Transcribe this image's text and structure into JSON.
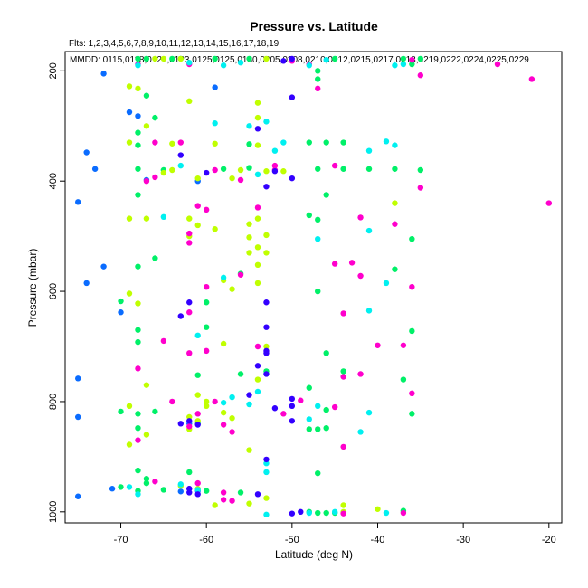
{
  "chart_data": {
    "type": "scatter",
    "title": "Pressure vs. Latitude",
    "subtitle_flts": "Flts: 1,2,3,4,5,6,7,8,9,10,11,12,13,14,15,16,17,18,19",
    "subtitle_mmdd": "MMDD: 0115,0118,0121,0123,0125,0125,0130,0205,0208,0210,0212,0215,0217,0218,0219,0222,0224,0225,0229",
    "xlabel": "Latitude (deg N)",
    "ylabel": "Pressure (mbar)",
    "xlim": [
      -76.5,
      -18.5
    ],
    "ylim": [
      1020,
      165
    ],
    "y_reversed": true,
    "grid": false,
    "xticks": [
      -70,
      -60,
      -50,
      -40,
      -30,
      -20
    ],
    "yticks": [
      200,
      400,
      600,
      800,
      1000
    ],
    "colors": [
      "#0a6cff",
      "#00f068",
      "#c0ff00",
      "#ff00cc",
      "#00f0f0",
      "#3300ff"
    ],
    "points": [
      [
        -72,
        205,
        0
      ],
      [
        -74,
        348,
        0
      ],
      [
        -73,
        378,
        0
      ],
      [
        -75,
        438,
        0
      ],
      [
        -72,
        555,
        0
      ],
      [
        -74,
        585,
        0
      ],
      [
        -75,
        758,
        0
      ],
      [
        -75,
        828,
        0
      ],
      [
        -71,
        958,
        0
      ],
      [
        -75,
        972,
        0
      ],
      [
        -69,
        275,
        0
      ],
      [
        -68,
        282,
        0
      ],
      [
        -67,
        398,
        0
      ],
      [
        -70,
        638,
        0
      ],
      [
        -59,
        230,
        0
      ],
      [
        -61,
        400,
        0
      ],
      [
        -62,
        840,
        0
      ],
      [
        -61,
        962,
        0
      ],
      [
        -63,
        963,
        0
      ],
      [
        -68,
        178,
        1
      ],
      [
        -67,
        178,
        1
      ],
      [
        -64,
        178,
        1
      ],
      [
        -63,
        178,
        1
      ],
      [
        -59,
        178,
        1
      ],
      [
        -55,
        178,
        1
      ],
      [
        -45,
        178,
        1
      ],
      [
        -37,
        178,
        1
      ],
      [
        -35,
        178,
        1
      ],
      [
        -36,
        188,
        1
      ],
      [
        -47,
        200,
        1
      ],
      [
        -47,
        215,
        1
      ],
      [
        -67,
        245,
        1
      ],
      [
        -66,
        285,
        1
      ],
      [
        -68,
        312,
        1
      ],
      [
        -68,
        335,
        1
      ],
      [
        -55,
        333,
        1
      ],
      [
        -48,
        330,
        1
      ],
      [
        -46,
        330,
        1
      ],
      [
        -44,
        330,
        1
      ],
      [
        -68,
        378,
        1
      ],
      [
        -65,
        380,
        1
      ],
      [
        -58,
        378,
        1
      ],
      [
        -55,
        376,
        1
      ],
      [
        -47,
        378,
        1
      ],
      [
        -44,
        378,
        1
      ],
      [
        -41,
        378,
        1
      ],
      [
        -38,
        378,
        1
      ],
      [
        -35,
        380,
        1
      ],
      [
        -68,
        425,
        1
      ],
      [
        -46,
        425,
        1
      ],
      [
        -48,
        462,
        1
      ],
      [
        -47,
        470,
        1
      ],
      [
        -36,
        505,
        1
      ],
      [
        -68,
        555,
        1
      ],
      [
        -66,
        540,
        1
      ],
      [
        -56,
        568,
        1
      ],
      [
        -38,
        560,
        1
      ],
      [
        -47,
        600,
        1
      ],
      [
        -70,
        618,
        1
      ],
      [
        -36,
        672,
        1
      ],
      [
        -68,
        670,
        1
      ],
      [
        -60,
        620,
        1
      ],
      [
        -68,
        692,
        1
      ],
      [
        -60,
        665,
        1
      ],
      [
        -46,
        712,
        1
      ],
      [
        -56,
        750,
        1
      ],
      [
        -53,
        745,
        1
      ],
      [
        -44,
        745,
        1
      ],
      [
        -37,
        760,
        1
      ],
      [
        -61,
        752,
        1
      ],
      [
        -48,
        775,
        1
      ],
      [
        -70,
        818,
        1
      ],
      [
        -68,
        822,
        1
      ],
      [
        -66,
        818,
        1
      ],
      [
        -46,
        815,
        1
      ],
      [
        -36,
        822,
        1
      ],
      [
        -48,
        850,
        1
      ],
      [
        -46,
        848,
        1
      ],
      [
        -47,
        850,
        1
      ],
      [
        -68,
        848,
        1
      ],
      [
        -61,
        840,
        1
      ],
      [
        -68,
        925,
        1
      ],
      [
        -47,
        930,
        1
      ],
      [
        -62,
        928,
        1
      ],
      [
        -67,
        948,
        1
      ],
      [
        -68,
        962,
        1
      ],
      [
        -65,
        960,
        1
      ],
      [
        -60,
        962,
        1
      ],
      [
        -56,
        965,
        1
      ],
      [
        -48,
        1000,
        1
      ],
      [
        -47,
        1002,
        1
      ],
      [
        -46,
        1002,
        1
      ],
      [
        -45,
        1002,
        1
      ],
      [
        -44,
        1002,
        1
      ],
      [
        -37,
        998,
        1
      ],
      [
        -70,
        955,
        1
      ],
      [
        -67,
        940,
        1
      ],
      [
        -69,
        228,
        2
      ],
      [
        -68,
        232,
        2
      ],
      [
        -62,
        255,
        2
      ],
      [
        -54,
        285,
        2
      ],
      [
        -54,
        258,
        2
      ],
      [
        -67,
        300,
        2
      ],
      [
        -69,
        330,
        2
      ],
      [
        -64,
        332,
        2
      ],
      [
        -59,
        332,
        2
      ],
      [
        -54,
        335,
        2
      ],
      [
        -64,
        380,
        2
      ],
      [
        -56,
        380,
        2
      ],
      [
        -65,
        385,
        2
      ],
      [
        -53,
        382,
        2
      ],
      [
        -51,
        382,
        2
      ],
      [
        -61,
        395,
        2
      ],
      [
        -57,
        395,
        2
      ],
      [
        -69,
        468,
        2
      ],
      [
        -67,
        468,
        2
      ],
      [
        -62,
        468,
        2
      ],
      [
        -61,
        480,
        2
      ],
      [
        -59,
        487,
        2
      ],
      [
        -54,
        468,
        2
      ],
      [
        -55,
        478,
        2
      ],
      [
        -55,
        502,
        2
      ],
      [
        -53,
        498,
        2
      ],
      [
        -54,
        520,
        2
      ],
      [
        -55,
        530,
        2
      ],
      [
        -53,
        530,
        2
      ],
      [
        -54,
        552,
        2
      ],
      [
        -62,
        500,
        2
      ],
      [
        -58,
        580,
        2
      ],
      [
        -57,
        596,
        2
      ],
      [
        -69,
        604,
        2
      ],
      [
        -68,
        622,
        2
      ],
      [
        -54,
        585,
        2
      ],
      [
        -58,
        695,
        2
      ],
      [
        -53,
        700,
        2
      ],
      [
        -67,
        770,
        2
      ],
      [
        -61,
        788,
        2
      ],
      [
        -54,
        760,
        2
      ],
      [
        -60,
        808,
        2
      ],
      [
        -58,
        820,
        2
      ],
      [
        -69,
        808,
        2
      ],
      [
        -62,
        828,
        2
      ],
      [
        -57,
        830,
        2
      ],
      [
        -62,
        850,
        2
      ],
      [
        -61,
        835,
        2
      ],
      [
        -60,
        800,
        2
      ],
      [
        -55,
        888,
        2
      ],
      [
        -69,
        878,
        2
      ],
      [
        -67,
        860,
        2
      ],
      [
        -63,
        953,
        2
      ],
      [
        -61,
        958,
        2
      ],
      [
        -59,
        988,
        2
      ],
      [
        -55,
        985,
        2
      ],
      [
        -53,
        975,
        2
      ],
      [
        -44,
        988,
        2
      ],
      [
        -40,
        995,
        2
      ],
      [
        -44,
        1000,
        2
      ],
      [
        -66,
        178,
        2
      ],
      [
        -65,
        178,
        2
      ],
      [
        -63,
        178,
        2
      ],
      [
        -53,
        178,
        2
      ],
      [
        -38,
        440,
        2
      ],
      [
        -68,
        188,
        3
      ],
      [
        -62,
        188,
        3
      ],
      [
        -48,
        188,
        3
      ],
      [
        -47,
        232,
        3
      ],
      [
        -50,
        182,
        3
      ],
      [
        -35,
        208,
        3
      ],
      [
        -26,
        188,
        3
      ],
      [
        -22,
        215,
        3
      ],
      [
        -20,
        440,
        3
      ],
      [
        -63,
        330,
        3
      ],
      [
        -66,
        330,
        3
      ],
      [
        -67,
        400,
        3
      ],
      [
        -66,
        393,
        3
      ],
      [
        -52,
        380,
        3
      ],
      [
        -52,
        372,
        3
      ],
      [
        -56,
        398,
        3
      ],
      [
        -45,
        372,
        3
      ],
      [
        -35,
        412,
        3
      ],
      [
        -60,
        452,
        3
      ],
      [
        -61,
        445,
        3
      ],
      [
        -62,
        512,
        3
      ],
      [
        -54,
        448,
        3
      ],
      [
        -42,
        466,
        3
      ],
      [
        -38,
        478,
        3
      ],
      [
        -45,
        550,
        3
      ],
      [
        -43,
        548,
        3
      ],
      [
        -42,
        572,
        3
      ],
      [
        -36,
        592,
        3
      ],
      [
        -44,
        640,
        3
      ],
      [
        -56,
        570,
        3
      ],
      [
        -60,
        592,
        3
      ],
      [
        -62,
        638,
        3
      ],
      [
        -65,
        690,
        3
      ],
      [
        -62,
        712,
        3
      ],
      [
        -60,
        708,
        3
      ],
      [
        -54,
        700,
        3
      ],
      [
        -40,
        698,
        3
      ],
      [
        -37,
        698,
        3
      ],
      [
        -44,
        755,
        3
      ],
      [
        -42,
        750,
        3
      ],
      [
        -36,
        785,
        3
      ],
      [
        -68,
        740,
        3
      ],
      [
        -64,
        800,
        3
      ],
      [
        -59,
        800,
        3
      ],
      [
        -49,
        798,
        3
      ],
      [
        -45,
        810,
        3
      ],
      [
        -51,
        822,
        3
      ],
      [
        -58,
        842,
        3
      ],
      [
        -62,
        845,
        3
      ],
      [
        -61,
        822,
        3
      ],
      [
        -44,
        882,
        3
      ],
      [
        -57,
        855,
        3
      ],
      [
        -68,
        870,
        3
      ],
      [
        -62,
        958,
        3
      ],
      [
        -61,
        948,
        3
      ],
      [
        -58,
        965,
        3
      ],
      [
        -57,
        980,
        3
      ],
      [
        -58,
        978,
        3
      ],
      [
        -66,
        945,
        3
      ],
      [
        -44,
        1003,
        3
      ],
      [
        -37,
        1002,
        3
      ],
      [
        -36,
        180,
        3
      ],
      [
        -59,
        380,
        3
      ],
      [
        -62,
        495,
        3
      ],
      [
        -68,
        190,
        4
      ],
      [
        -62,
        185,
        4
      ],
      [
        -58,
        190,
        4
      ],
      [
        -38,
        190,
        4
      ],
      [
        -37,
        188,
        4
      ],
      [
        -53,
        292,
        4
      ],
      [
        -55,
        300,
        4
      ],
      [
        -51,
        330,
        4
      ],
      [
        -52,
        345,
        4
      ],
      [
        -39,
        328,
        4
      ],
      [
        -41,
        345,
        4
      ],
      [
        -38,
        335,
        4
      ],
      [
        -54,
        388,
        4
      ],
      [
        -63,
        372,
        4
      ],
      [
        -59,
        295,
        4
      ],
      [
        -65,
        465,
        4
      ],
      [
        -47,
        505,
        4
      ],
      [
        -41,
        490,
        4
      ],
      [
        -58,
        575,
        4
      ],
      [
        -39,
        585,
        4
      ],
      [
        -41,
        635,
        4
      ],
      [
        -61,
        680,
        4
      ],
      [
        -54,
        782,
        4
      ],
      [
        -57,
        792,
        4
      ],
      [
        -58,
        802,
        4
      ],
      [
        -55,
        805,
        4
      ],
      [
        -47,
        808,
        4
      ],
      [
        -48,
        832,
        4
      ],
      [
        -42,
        855,
        4
      ],
      [
        -41,
        820,
        4
      ],
      [
        -53,
        912,
        4
      ],
      [
        -53,
        928,
        4
      ],
      [
        -63,
        950,
        4
      ],
      [
        -61,
        960,
        4
      ],
      [
        -48,
        1002,
        4
      ],
      [
        -45,
        1000,
        4
      ],
      [
        -39,
        1002,
        4
      ],
      [
        -69,
        955,
        4
      ],
      [
        -68,
        968,
        4
      ],
      [
        -46,
        180,
        4
      ],
      [
        -48,
        190,
        4
      ],
      [
        -56,
        185,
        4
      ],
      [
        -53,
        1005,
        4
      ],
      [
        -50,
        178,
        5
      ],
      [
        -51,
        182,
        5
      ],
      [
        -54,
        305,
        5
      ],
      [
        -52,
        382,
        5
      ],
      [
        -50,
        395,
        5
      ],
      [
        -60,
        385,
        5
      ],
      [
        -53,
        410,
        5
      ],
      [
        -62,
        620,
        5
      ],
      [
        -53,
        620,
        5
      ],
      [
        -63,
        645,
        5
      ],
      [
        -53,
        665,
        5
      ],
      [
        -53,
        708,
        5
      ],
      [
        -53,
        712,
        5
      ],
      [
        -54,
        735,
        5
      ],
      [
        -53,
        750,
        5
      ],
      [
        -55,
        788,
        5
      ],
      [
        -50,
        795,
        5
      ],
      [
        -50,
        808,
        5
      ],
      [
        -52,
        812,
        5
      ],
      [
        -50,
        835,
        5
      ],
      [
        -53,
        905,
        5
      ],
      [
        -62,
        835,
        5
      ],
      [
        -63,
        840,
        5
      ],
      [
        -61,
        842,
        5
      ],
      [
        -62,
        965,
        5
      ],
      [
        -61,
        968,
        5
      ],
      [
        -62,
        958,
        5
      ],
      [
        -54,
        968,
        5
      ],
      [
        -50,
        1003,
        5
      ],
      [
        -49,
        1000,
        5
      ],
      [
        -50,
        248,
        5
      ],
      [
        -63,
        353,
        5
      ]
    ]
  }
}
